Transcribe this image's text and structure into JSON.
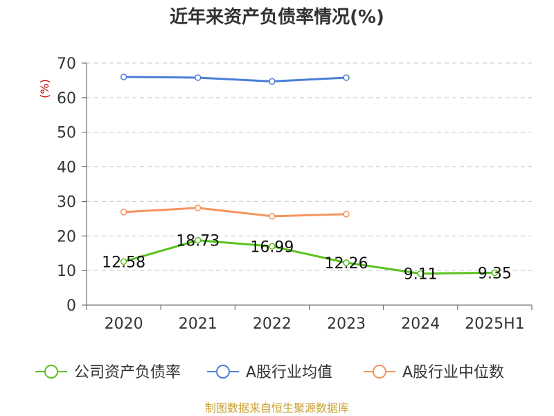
{
  "chart_data": {
    "type": "line",
    "title": "近年来资产负债率情况(%)",
    "ylabel": "(%)",
    "categories": [
      "2020",
      "2021",
      "2022",
      "2023",
      "2024",
      "2025H1"
    ],
    "ylim": [
      0,
      70
    ],
    "yticks": [
      0,
      10,
      20,
      30,
      40,
      50,
      60,
      70
    ],
    "grid": true,
    "legend_position": "bottom",
    "series": [
      {
        "name": "公司资产负债率",
        "color": "#5ac21e",
        "values": [
          12.58,
          18.73,
          16.99,
          12.26,
          9.11,
          9.35
        ],
        "data_labels": [
          "12.58",
          "18.73",
          "16.99",
          "12.26",
          "9.11",
          "9.35"
        ]
      },
      {
        "name": "A股行业均值",
        "color": "#4a7fd6",
        "values": [
          66.0,
          65.8,
          64.7,
          65.8,
          null,
          null
        ]
      },
      {
        "name": "A股行业中位数",
        "color": "#f5955e",
        "values": [
          26.9,
          28.1,
          25.7,
          26.3,
          null,
          null
        ]
      }
    ]
  },
  "source_text": "制图数据来自恒生聚源数据库"
}
